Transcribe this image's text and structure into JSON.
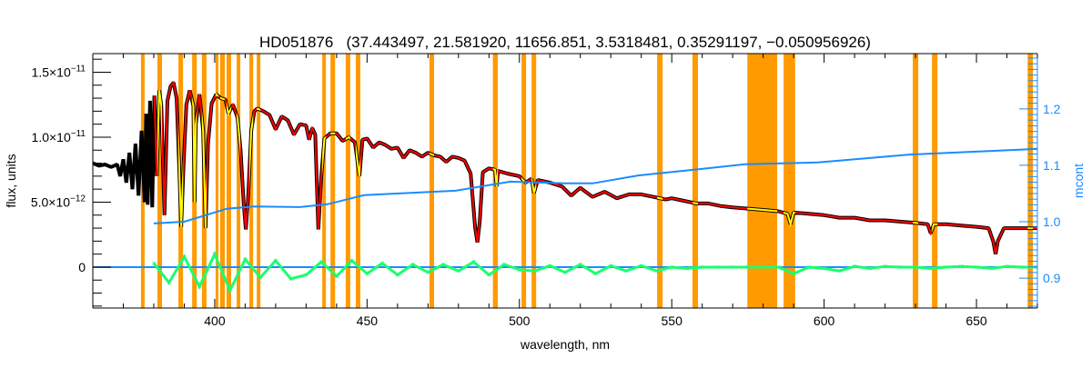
{
  "chart_data": {
    "type": "line",
    "title": "HD051876   (37.443497, 21.581920, 11656.851, 3.5318481, 0.35291197, −0.050956926)",
    "xlabel": "wavelength, nm",
    "ylabel": "flux, units",
    "y2label": "mcont",
    "xlim": [
      360,
      670
    ],
    "ylim": [
      -3.15e-12,
      1.643e-11
    ],
    "y2lim": [
      0.847,
      1.298
    ],
    "grid": false,
    "x_ticks": [
      {
        "value": 400,
        "label": "400"
      },
      {
        "value": 450,
        "label": "450"
      },
      {
        "value": 500,
        "label": "500"
      },
      {
        "value": 550,
        "label": "550"
      },
      {
        "value": 600,
        "label": "600"
      },
      {
        "value": 650,
        "label": "650"
      }
    ],
    "y_ticks": [
      {
        "value": 0,
        "mantissa": "0",
        "exp": ""
      },
      {
        "value": 5e-12,
        "mantissa": "5.0×10",
        "exp": "−12"
      },
      {
        "value": 1e-11,
        "mantissa": "1.0×10",
        "exp": "−11"
      },
      {
        "value": 1.5e-11,
        "mantissa": "1.5×10",
        "exp": "−11"
      }
    ],
    "y2_ticks": [
      {
        "value": 0.9,
        "label": "0.9"
      },
      {
        "value": 1.0,
        "label": "1.0"
      },
      {
        "value": 1.1,
        "label": "1.1"
      },
      {
        "value": 1.2,
        "label": "1.2"
      }
    ],
    "colors": {
      "observed": "#000000",
      "model": "#ff0000",
      "masked_model": "#ffff00",
      "mask": "#ff9a00",
      "mcont": "#1a8cff",
      "residual": "#19ff6e"
    },
    "masked_regions": [
      [
        375.8,
        377.0
      ],
      [
        381.2,
        382.7
      ],
      [
        388.1,
        389.6
      ],
      [
        392.6,
        394.1
      ],
      [
        395.8,
        397.3
      ],
      [
        400.3,
        401.2
      ],
      [
        401.8,
        403.3
      ],
      [
        403.9,
        405.4
      ],
      [
        407.2,
        408.4
      ],
      [
        411.4,
        412.6
      ],
      [
        413.8,
        415.0
      ],
      [
        435.3,
        436.5
      ],
      [
        438.0,
        439.5
      ],
      [
        443.0,
        444.5
      ],
      [
        446.3,
        447.8
      ],
      [
        470.5,
        472.0
      ],
      [
        491.3,
        492.9
      ],
      [
        500.7,
        502.2
      ],
      [
        504.0,
        505.5
      ],
      [
        545.2,
        547.0
      ],
      [
        556.8,
        558.6
      ],
      [
        574.8,
        584.6
      ],
      [
        586.7,
        590.5
      ],
      [
        629.1,
        630.9
      ],
      [
        635.4,
        637.2
      ],
      [
        666.8,
        668.5
      ]
    ],
    "series": [
      {
        "role": "observed flux",
        "x": [
          360,
          362,
          364,
          366,
          368,
          369,
          370,
          371,
          372,
          373,
          374,
          375,
          376,
          377,
          377.5,
          378,
          378.8,
          379.5,
          380.2,
          381,
          381.8,
          382.5,
          383.5,
          384.5,
          385.5,
          386.5,
          387.5,
          388.3,
          389,
          389.8,
          390.7,
          391.8,
          393,
          393.4,
          393.8,
          395,
          396.2,
          397,
          397.8,
          399,
          400.5,
          402,
          403.5,
          404.5,
          406,
          407.5,
          408.5,
          409.5,
          410.2,
          411,
          412,
          413,
          414,
          416,
          418,
          420,
          422,
          424,
          426,
          428,
          430,
          431,
          432,
          433,
          434,
          435,
          436,
          438,
          440,
          442,
          444,
          446,
          447.5,
          448.5,
          450,
          452,
          454,
          456,
          458,
          460,
          462,
          464,
          466,
          468,
          470,
          472,
          474,
          476,
          478,
          480,
          482,
          484,
          485.5,
          486.2,
          487,
          488,
          490,
          492,
          492.5,
          493,
          496,
          500,
          502,
          504,
          504.8,
          506,
          510,
          514,
          517,
          520,
          524,
          528,
          532,
          536,
          540,
          544,
          548,
          550,
          554,
          558,
          562,
          566,
          570,
          575,
          580,
          585,
          588,
          589,
          590,
          595,
          600,
          605,
          610,
          615,
          620,
          625,
          630,
          634,
          635,
          636,
          640,
          645,
          650,
          654,
          655.5,
          656.3,
          657,
          659,
          664,
          670
        ],
        "y": [
          8e-12,
          7.8e-12,
          7.9e-12,
          7.7e-12,
          7.9e-12,
          7e-12,
          8.3e-12,
          6.5e-12,
          8.8e-12,
          6e-12,
          9.5e-12,
          5.5e-12,
          1.05e-11,
          5e-12,
          1.18e-11,
          4.8e-12,
          1.28e-11,
          4.6e-12,
          1.32e-11,
          7e-12,
          1.36e-11,
          1.24e-11,
          4e-12,
          1.28e-11,
          1.39e-11,
          1.42e-11,
          1.3e-11,
          8e-12,
          3.1e-12,
          8e-12,
          1.25e-11,
          1.36e-11,
          1.24e-11,
          5e-12,
          1.1e-11,
          1.33e-11,
          1.05e-11,
          3e-12,
          9.5e-12,
          1.26e-11,
          1.33e-11,
          1.3e-11,
          1.29e-11,
          1.18e-11,
          1.25e-11,
          1.15e-11,
          9e-12,
          5e-12,
          2.9e-12,
          5.5e-12,
          1.05e-11,
          1.2e-11,
          1.22e-11,
          1.2e-11,
          1.17e-11,
          1.06e-11,
          1.16e-11,
          1.13e-11,
          1.02e-11,
          1.1e-11,
          1.09e-11,
          9.8e-12,
          1.07e-11,
          1.02e-11,
          2.9e-12,
          7e-12,
          9.9e-12,
          1.03e-11,
          1.03e-11,
          9.7e-12,
          1e-11,
          9.6e-12,
          7e-12,
          9.8e-12,
          9.9e-12,
          9.2e-12,
          9.6e-12,
          9.4e-12,
          9.1e-12,
          9.2e-12,
          8.4e-12,
          9e-12,
          8.8e-12,
          8.5e-12,
          8.8e-12,
          8.6e-12,
          8.5e-12,
          8.1e-12,
          8.5e-12,
          8.4e-12,
          8.2e-12,
          7.2e-12,
          3e-12,
          1.9e-12,
          3.5e-12,
          7.3e-12,
          7.6e-12,
          7.5e-12,
          6.2e-12,
          7.4e-12,
          7.2e-12,
          7e-12,
          6.5e-12,
          6.8e-12,
          5.7e-12,
          6.7e-12,
          6.5e-12,
          6.2e-12,
          5.5e-12,
          6.1e-12,
          5.4e-12,
          5.8e-12,
          5.3e-12,
          5.6e-12,
          5.6e-12,
          5.4e-12,
          5.2e-12,
          5.3e-12,
          5.1e-12,
          4.9e-12,
          4.9e-12,
          4.7e-12,
          4.6e-12,
          4.5e-12,
          4.4e-12,
          4.3e-12,
          4.1e-12,
          3.3e-12,
          4.2e-12,
          4.1e-12,
          4e-12,
          3.8e-12,
          3.8e-12,
          3.6e-12,
          3.6e-12,
          3.5e-12,
          3.4e-12,
          3.3e-12,
          2.6e-12,
          3.3e-12,
          3.3e-12,
          3.2e-12,
          3.1e-12,
          3e-12,
          2e-12,
          1e-12,
          2e-12,
          3e-12,
          3e-12,
          3e-12
        ]
      },
      {
        "role": "mcont (right axis)",
        "x": [
          380,
          390,
          404,
          413,
          428,
          437,
          449,
          479,
          497,
          515,
          524,
          539,
          557,
          574,
          598,
          628,
          670
        ],
        "y": [
          0.997,
          1.0,
          1.023,
          1.027,
          1.026,
          1.031,
          1.047,
          1.055,
          1.071,
          1.068,
          1.068,
          1.082,
          1.092,
          1.102,
          1.105,
          1.119,
          1.129
        ]
      },
      {
        "role": "residual",
        "x": [
          380,
          385,
          390,
          395,
          400,
          405,
          410,
          415,
          420,
          425,
          430,
          435,
          440,
          445,
          450,
          455,
          460,
          465,
          470,
          475,
          480,
          485,
          490,
          495,
          500,
          505,
          510,
          515,
          520,
          525,
          530,
          535,
          540,
          545,
          550,
          555,
          560,
          565,
          570,
          575,
          585,
          590,
          595,
          600,
          605,
          610,
          615,
          620,
          625,
          630,
          635,
          640,
          645,
          650,
          655,
          660,
          665,
          670
        ],
        "y": [
          3e-13,
          -1.2e-12,
          8e-13,
          -1.5e-12,
          1e-12,
          -1.8e-12,
          6e-13,
          -8e-13,
          5e-13,
          -9e-13,
          -6e-13,
          4e-13,
          -7e-13,
          5e-13,
          -5e-13,
          3e-13,
          -6e-13,
          2e-13,
          -4e-13,
          2e-13,
          -3e-13,
          4e-13,
          -6e-13,
          2e-13,
          -2e-13,
          -3e-13,
          1e-13,
          -4e-13,
          2e-13,
          -5e-13,
          1e-13,
          -3e-13,
          1e-13,
          -3e-13,
          0,
          -1e-13,
          0,
          0,
          0,
          0,
          0,
          -5e-13,
          0,
          -1e-13,
          -3e-13,
          5e-14,
          -1e-13,
          5e-14,
          0,
          0,
          -1e-13,
          0,
          5e-14,
          0,
          -1e-13,
          5e-14,
          0,
          0
        ]
      }
    ]
  }
}
